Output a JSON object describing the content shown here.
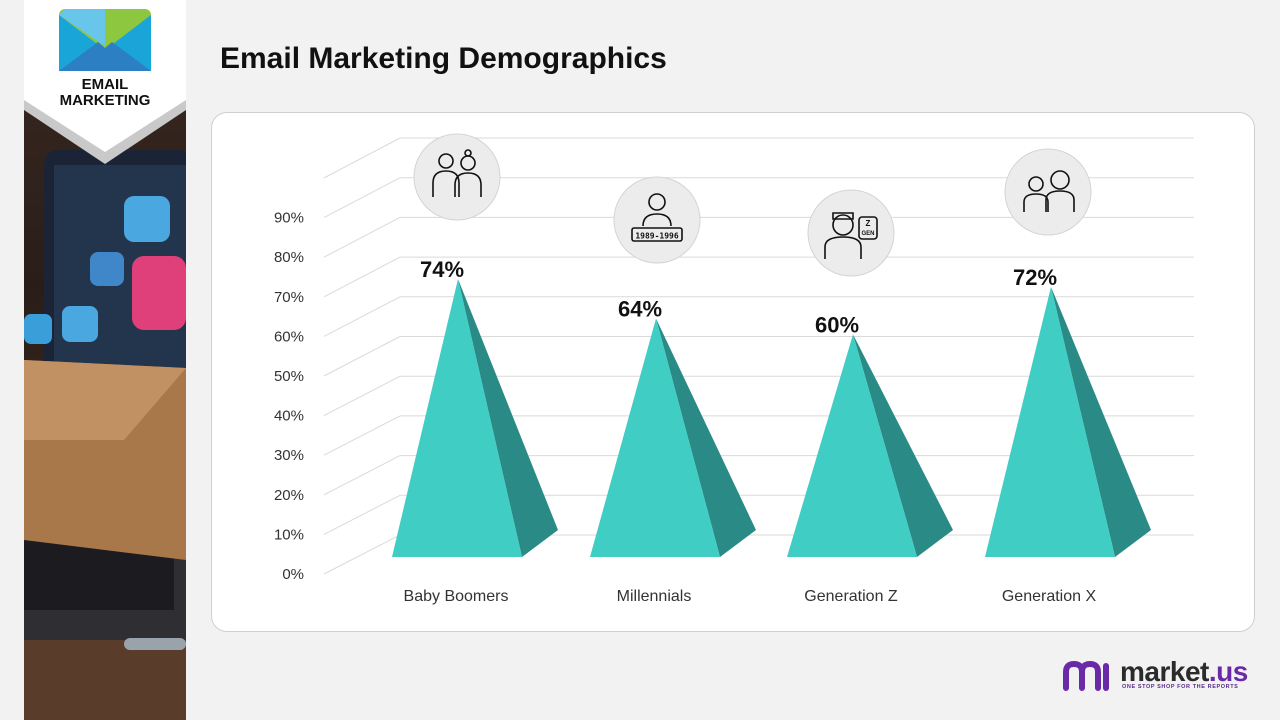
{
  "badge": {
    "line1": "EMAIL",
    "line2": "MARKETING",
    "icon": "envelope-icon"
  },
  "page": {
    "title": "Email Marketing Demographics"
  },
  "chart_data": {
    "type": "bar",
    "bar_shape": "3d-cone",
    "categories": [
      "Baby Boomers",
      "Millennials",
      "Generation Z",
      "Generation X"
    ],
    "values": [
      74,
      64,
      60,
      72
    ],
    "value_labels": [
      "74%",
      "64%",
      "60%",
      "72%"
    ],
    "yticks": [
      "0%",
      "10%",
      "20%",
      "30%",
      "40%",
      "50%",
      "60%",
      "70%",
      "80%",
      "90%"
    ],
    "ylim": [
      0,
      90
    ],
    "grid": true,
    "title": "",
    "xlabel": "",
    "ylabel": "",
    "category_icons": [
      "elderly-couple-icon",
      "millennial-person-icon",
      "gen-z-person-icon",
      "gen-x-people-icon"
    ],
    "icon_texts": [
      "",
      "1989-1996",
      "Z GEN",
      ""
    ],
    "colors": {
      "front": "#40cdc4",
      "side": "#2a8b86",
      "grid": "#dadada"
    }
  },
  "logo": {
    "text_main": "market",
    "text_suffix": ".us",
    "tagline": "ONE STOP SHOP FOR THE REPORTS",
    "colors": {
      "accent": "#6a2aa8",
      "text": "#2b2b2b"
    }
  }
}
